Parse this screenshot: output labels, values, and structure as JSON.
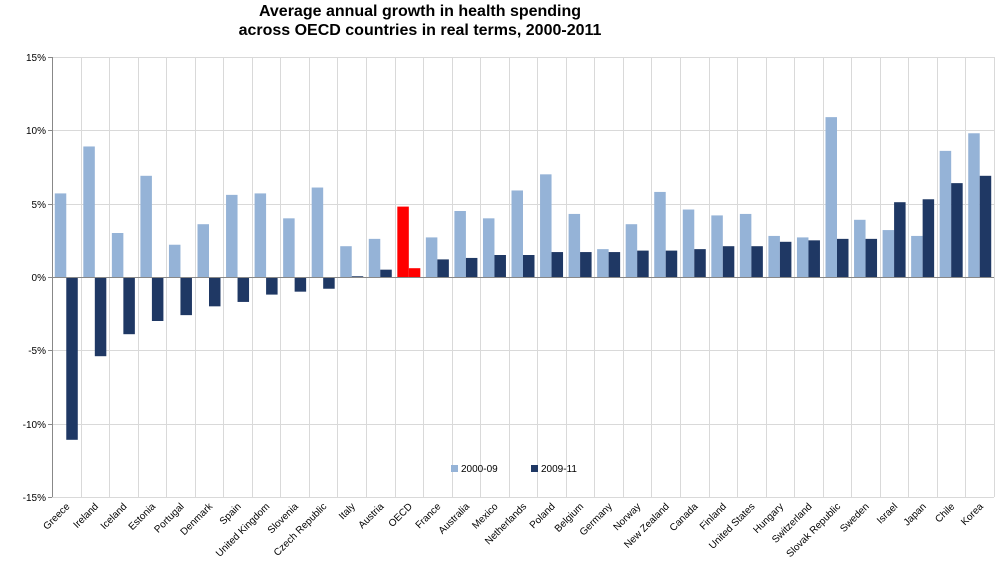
{
  "chart_data": {
    "type": "bar",
    "title_line1": "Average annual growth in health spending",
    "title_line2": "across OECD countries in real terms, 2000-2011",
    "xlabel": "",
    "ylabel": "",
    "ylim": [
      -15,
      15
    ],
    "yticks": [
      15,
      10,
      5,
      0,
      -5,
      -10,
      -15
    ],
    "ytick_labels": [
      "15%",
      "10%",
      "5%",
      "0%",
      "-5%",
      "-10%",
      "-15%"
    ],
    "grid": true,
    "legend_position": "bottom-center",
    "highlight_category": "OECD",
    "colors": {
      "series1": "#95b3d7",
      "series2": "#1f3864",
      "highlight": "#ff0000",
      "grid": "#d9d9d9"
    },
    "categories": [
      "Greece",
      "Ireland",
      "Iceland",
      "Estonia",
      "Portugal",
      "Denmark",
      "Spain",
      "United Kingdom",
      "Slovenia",
      "Czech Republic",
      "Italy",
      "Austria",
      "OECD",
      "France",
      "Australia",
      "Mexico",
      "Netherlands",
      "Poland",
      "Belgium",
      "Germany",
      "Norway",
      "New Zealand",
      "Canada",
      "Finland",
      "United States",
      "Hungary",
      "Switzerland",
      "Slovak Republic",
      "Sweden",
      "Israel",
      "Japan",
      "Chile",
      "Korea"
    ],
    "series": [
      {
        "name": "2000-09",
        "values": [
          5.7,
          8.9,
          3.0,
          6.9,
          2.2,
          3.6,
          5.6,
          5.7,
          4.0,
          6.1,
          2.1,
          2.6,
          4.8,
          2.7,
          4.5,
          4.0,
          5.9,
          7.0,
          4.3,
          1.9,
          3.6,
          5.8,
          4.6,
          4.2,
          4.3,
          2.8,
          2.7,
          10.9,
          3.9,
          3.2,
          2.8,
          8.6,
          9.8
        ]
      },
      {
        "name": "2009-11",
        "values": [
          -11.1,
          -5.4,
          -3.9,
          -3.0,
          -2.6,
          -2.0,
          -1.7,
          -1.2,
          -1.0,
          -0.8,
          0.05,
          0.5,
          0.6,
          1.2,
          1.3,
          1.5,
          1.5,
          1.7,
          1.7,
          1.7,
          1.8,
          1.8,
          1.9,
          2.1,
          2.1,
          2.4,
          2.5,
          2.6,
          2.6,
          5.1,
          5.3,
          6.4,
          6.9
        ]
      }
    ]
  }
}
